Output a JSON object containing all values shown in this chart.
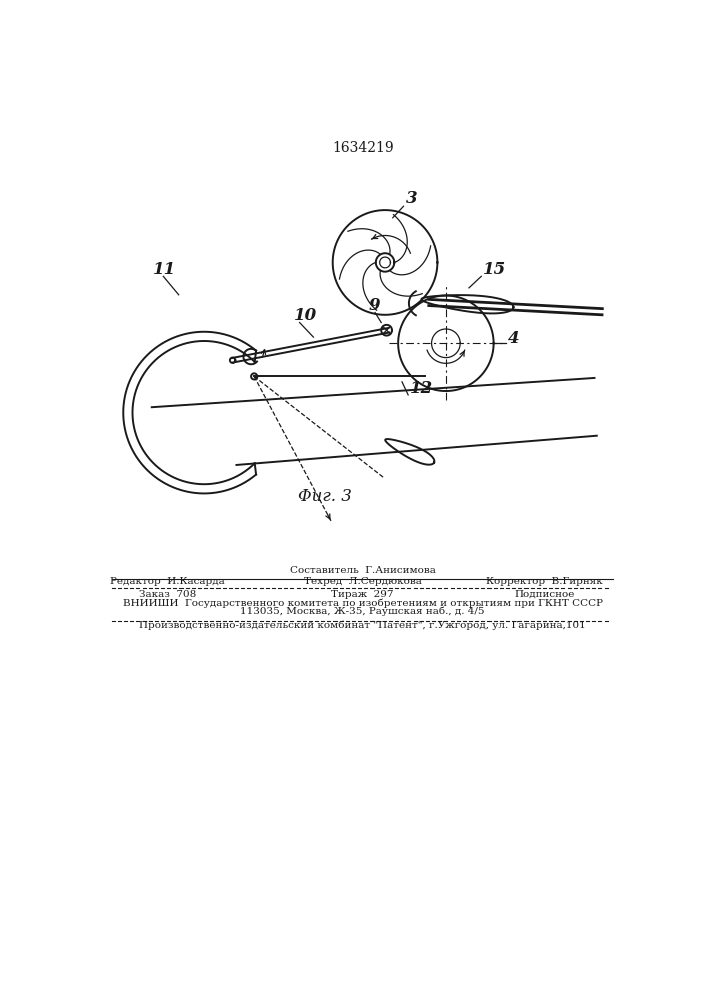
{
  "patent_number": "1634219",
  "bg_color": "#ffffff",
  "line_color": "#1a1a1a",
  "label_3": "3",
  "label_4": "4",
  "label_9": "9",
  "label_10": "10",
  "label_11": "11",
  "label_12": "12",
  "label_15": "15",
  "fig_label": "Φиг.3",
  "editor_line": "Редактор  И.Касарда",
  "compiler_line": "Составитель  Г.Анисимова",
  "techred_line": "Техред  Л.Сердюкова",
  "corrector_line": "Корректор  В.Гирняк",
  "zakaz_line": "Заказ  708",
  "tirazh_line": "Тираж  297",
  "podpisnoe_line": "Подписное",
  "vniishi_line": "ВНИИШИ  Государственного комитета по изобретениям и открытиям при ГКНТ СССР",
  "address_line": "113035, Москва, Ж-35, Раушская наб., д. 4/5",
  "publisher_line": "Производственно-издательский комбинат \"Патент\", г.Ужгород, ул. Гагарина,101"
}
